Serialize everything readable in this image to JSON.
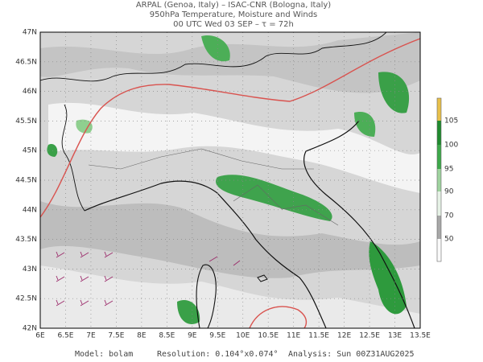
{
  "header": {
    "lines": [
      "ARPAL (Genoa, Italy)  –  ISAC-CNR (Bologna, Italy)",
      "950hPa Temperature, Moisture and Winds",
      "00 UTC Wed 03 SEP  –  τ = 72h"
    ]
  },
  "axes": {
    "x_labels": [
      "6E",
      "6.5E",
      "7E",
      "7.5E",
      "8E",
      "8.5E",
      "9E",
      "9.5E",
      "10E",
      "10.5E",
      "11E",
      "11.5E",
      "12E",
      "12.5E",
      "13E",
      "13.5E"
    ],
    "y_labels": [
      "47N",
      "46.5N",
      "46N",
      "45.5N",
      "45N",
      "44.5N",
      "44N",
      "43.5N",
      "43N",
      "42.5N",
      "42N"
    ]
  },
  "colorbar": {
    "labels": [
      "105",
      "100",
      "95",
      "90",
      "70",
      "50"
    ]
  },
  "footer": {
    "model": "Model: bolam",
    "resolution": "Resolution: 0.104°x0.074°",
    "analysis": "Analysis: Sun 00Z31AUG2025"
  }
}
